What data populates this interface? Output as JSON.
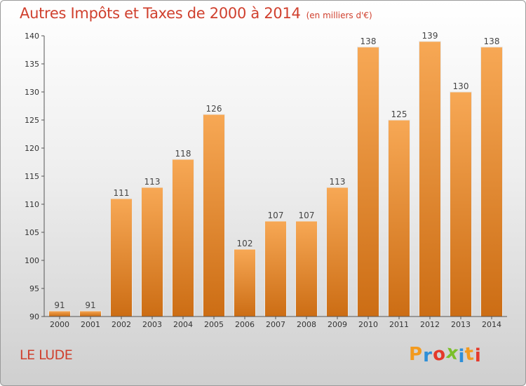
{
  "header": {
    "title": "Autres Impôts et Taxes de 2000 à 2014",
    "subtitle": "(en milliers d'€)"
  },
  "footer": {
    "location": "LE LUDE",
    "logo_text": "Proxiti"
  },
  "colors": {
    "title": "#d0402e",
    "bar_light": "#f7a855",
    "bar_dark": "#cc6d14",
    "axis": "#555555"
  },
  "chart_data": {
    "type": "bar",
    "title": "Autres Impôts et Taxes de 2000 à 2014",
    "xlabel": "",
    "ylabel": "",
    "categories": [
      "2000",
      "2001",
      "2002",
      "2003",
      "2004",
      "2005",
      "2006",
      "2007",
      "2008",
      "2009",
      "2010",
      "2011",
      "2012",
      "2013",
      "2014"
    ],
    "values": [
      91,
      91,
      111,
      113,
      118,
      126,
      102,
      107,
      107,
      113,
      138,
      125,
      139,
      130,
      138
    ],
    "ylim": [
      90,
      140
    ],
    "yticks": [
      90,
      95,
      100,
      105,
      110,
      115,
      120,
      125,
      130,
      135,
      140
    ],
    "grid": false,
    "data_labels": true
  }
}
